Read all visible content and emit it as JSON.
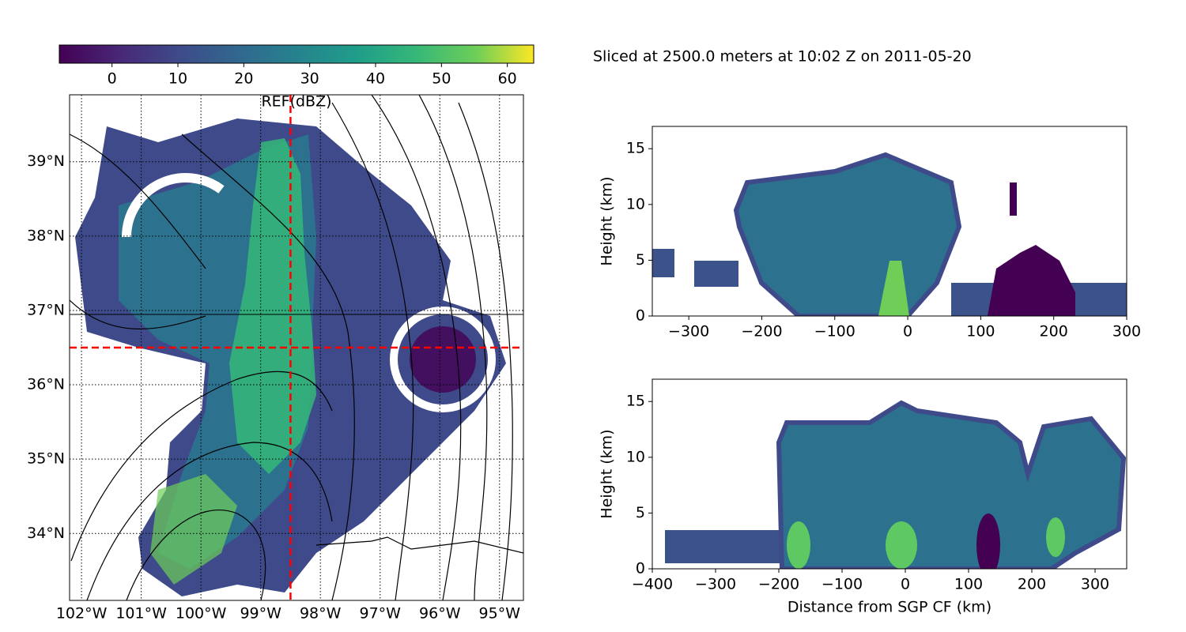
{
  "suptitle": "Sliced at 2500.0 meters at 10:02 Z on 2011-05-20",
  "chart_data": [
    {
      "type": "map",
      "colorbar": {
        "label": "REF(dBZ)",
        "lim": [
          -8,
          64
        ],
        "ticks": [
          0,
          10,
          20,
          30,
          40,
          50,
          60
        ]
      },
      "xlim": [
        -102.2,
        -94.6
      ],
      "ylim": [
        33.1,
        39.9
      ],
      "xticks": [
        {
          "value": -102,
          "label": "102°W"
        },
        {
          "value": -101,
          "label": "101°W"
        },
        {
          "value": -100,
          "label": "100°W"
        },
        {
          "value": -99,
          "label": "99°W"
        },
        {
          "value": -98,
          "label": "98°W"
        },
        {
          "value": -97,
          "label": "97°W"
        },
        {
          "value": -96,
          "label": "96°W"
        },
        {
          "value": -95,
          "label": "95°W"
        }
      ],
      "yticks": [
        {
          "value": 34,
          "label": "34°N"
        },
        {
          "value": 35,
          "label": "35°N"
        },
        {
          "value": 36,
          "label": "36°N"
        },
        {
          "value": 37,
          "label": "37°N"
        },
        {
          "value": 38,
          "label": "38°N"
        },
        {
          "value": 39,
          "label": "39°N"
        }
      ],
      "grid": true,
      "crosshair": {
        "x": -98.5,
        "y": 36.5,
        "color": "#ff0000"
      }
    },
    {
      "type": "cross-section",
      "ylabel": "Height (km)",
      "xlim": [
        -350,
        300
      ],
      "ylim": [
        0,
        17
      ],
      "xticks": [
        {
          "value": -300,
          "label": "−300"
        },
        {
          "value": -200,
          "label": "−200"
        },
        {
          "value": -100,
          "label": "−100"
        },
        0,
        100,
        200,
        300
      ],
      "yticks": [
        0,
        5,
        10,
        15
      ]
    },
    {
      "type": "cross-section",
      "ylabel": "Height (km)",
      "xlabel": "Distance from SGP CF (km)",
      "xlim": [
        -400,
        350
      ],
      "ylim": [
        0,
        17
      ],
      "xticks": [
        {
          "value": -400,
          "label": "−400"
        },
        {
          "value": -300,
          "label": "−300"
        },
        {
          "value": -200,
          "label": "−200"
        },
        {
          "value": -100,
          "label": "−100"
        },
        0,
        100,
        200,
        300
      ],
      "yticks": [
        0,
        5,
        10,
        15
      ]
    }
  ]
}
